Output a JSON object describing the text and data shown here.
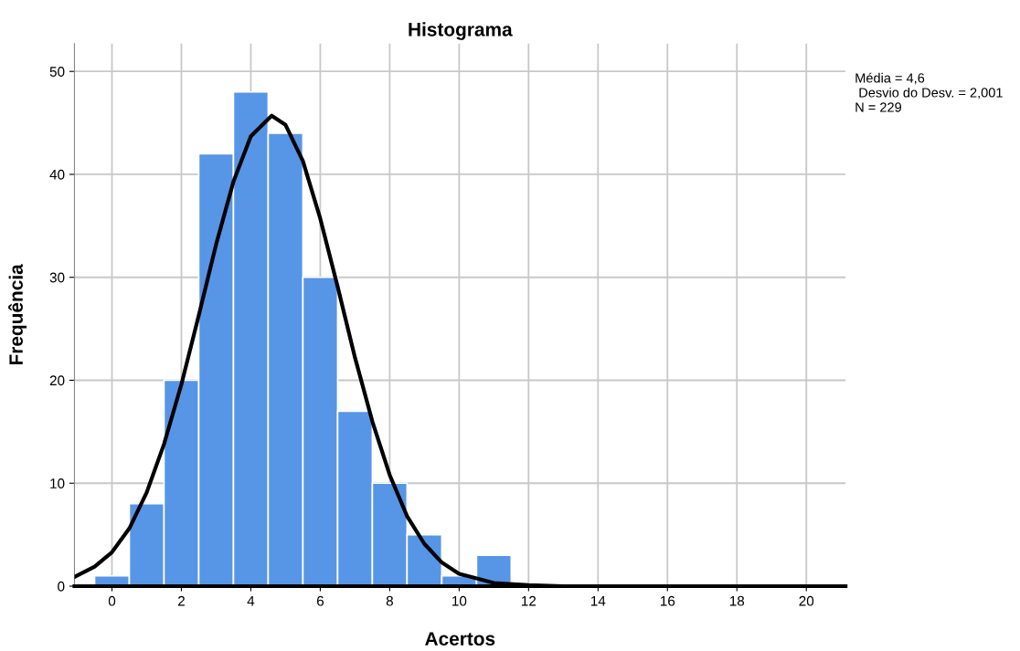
{
  "chart_data": {
    "type": "histogram",
    "title": "Histograma",
    "xlabel": "Acertos",
    "ylabel": "Frequência",
    "bins": [
      -0.5,
      0.5,
      1.5,
      2.5,
      3.5,
      4.5,
      5.5,
      6.5,
      7.5,
      8.5,
      9.5,
      10.5,
      11.5
    ],
    "values": [
      1,
      8,
      20,
      42,
      48,
      44,
      30,
      17,
      10,
      5,
      1,
      3
    ],
    "color": "#5795e6",
    "series": [
      {
        "type": "line",
        "color": "#000000",
        "x": [
          -1.08,
          -0.5,
          0,
          0.5,
          1,
          1.5,
          2,
          2.5,
          3,
          3.5,
          4,
          4.6,
          5,
          5.5,
          6,
          6.5,
          7,
          7.5,
          8,
          8.5,
          9,
          9.5,
          10,
          11,
          12,
          13,
          15,
          18,
          21.13
        ],
        "values": [
          0.9,
          1.9,
          3.3,
          5.6,
          9.1,
          13.8,
          19.6,
          26.3,
          33.2,
          39.3,
          43.7,
          45.7,
          44.8,
          41.3,
          35.7,
          29.1,
          22.2,
          16.0,
          10.8,
          6.8,
          4.1,
          2.3,
          1.2,
          0.3,
          0.1,
          0,
          0,
          0,
          0
        ]
      }
    ],
    "xlim": [
      -1.08,
      21.13
    ],
    "xticks": [
      0,
      2,
      4,
      6,
      8,
      10,
      12,
      14,
      16,
      18,
      20
    ],
    "ylim": [
      0,
      52.7
    ],
    "yticks": [
      0,
      10,
      20,
      30,
      40,
      50
    ],
    "grid": true,
    "annotations": [
      "Média = 4,6",
      " Desvio do Desv. = 2,001",
      "N = 229"
    ]
  }
}
